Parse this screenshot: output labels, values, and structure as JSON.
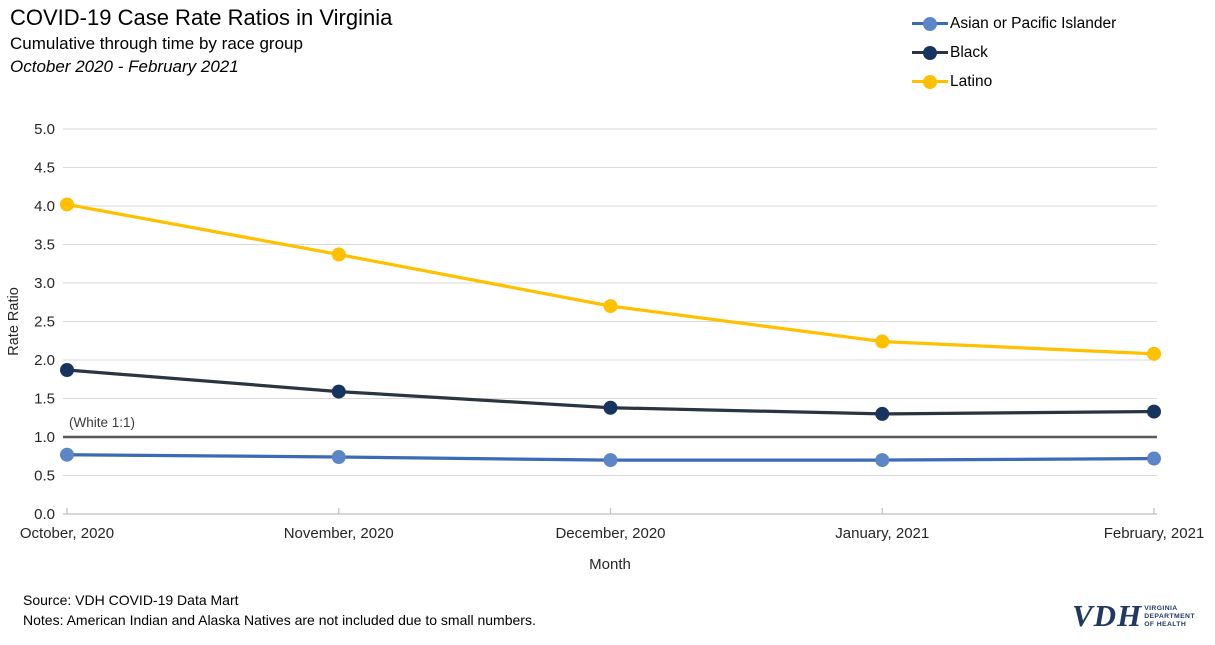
{
  "header": {
    "title": "COVID-19 Case Rate Ratios in Virginia",
    "subtitle": "Cumulative through time by race group",
    "date_range": "October 2020 - February 2021"
  },
  "chart_data": {
    "type": "line",
    "title": "COVID-19 Case Rate Ratios in Virginia",
    "categories": [
      "October, 2020",
      "November, 2020",
      "December, 2020",
      "January, 2021",
      "February, 2021"
    ],
    "series": [
      {
        "name": "Asian or Pacific Islander",
        "values": [
          0.77,
          0.74,
          0.7,
          0.7,
          0.72
        ],
        "line_color": "#3B6BB4",
        "marker_color": "#5C86C6"
      },
      {
        "name": "Black",
        "values": [
          1.87,
          1.59,
          1.38,
          1.3,
          1.33
        ],
        "line_color": "#2A3541",
        "marker_color": "#17345F"
      },
      {
        "name": "Latino",
        "values": [
          4.02,
          3.37,
          2.7,
          2.24,
          2.08
        ],
        "line_color": "#FFC000",
        "marker_color": "#FFC000"
      }
    ],
    "xlabel": "Month",
    "ylabel": "Rate Ratio",
    "ylim": [
      0,
      5
    ],
    "ytick_step": 0.5,
    "yticks": [
      "0.0",
      "0.5",
      "1.0",
      "1.5",
      "2.0",
      "2.5",
      "3.0",
      "3.5",
      "4.0",
      "4.5",
      "5.0"
    ],
    "reference_line": {
      "value": 1.0,
      "label": "(White 1:1)"
    },
    "grid": true,
    "legend_position": "top-right",
    "style": {
      "gridline": "#D9D9D9",
      "axis": "#BFBFBF",
      "reference": "#595959",
      "tick_text": "#262626"
    }
  },
  "footer": {
    "source": "Source: VDH COVID-19 Data Mart",
    "notes": "Notes: American Indian and Alaska Natives are not included due to small numbers."
  },
  "logo": {
    "acronym": "VDH",
    "lines": [
      "VIRGINIA",
      "DEPARTMENT",
      "OF HEALTH"
    ]
  }
}
